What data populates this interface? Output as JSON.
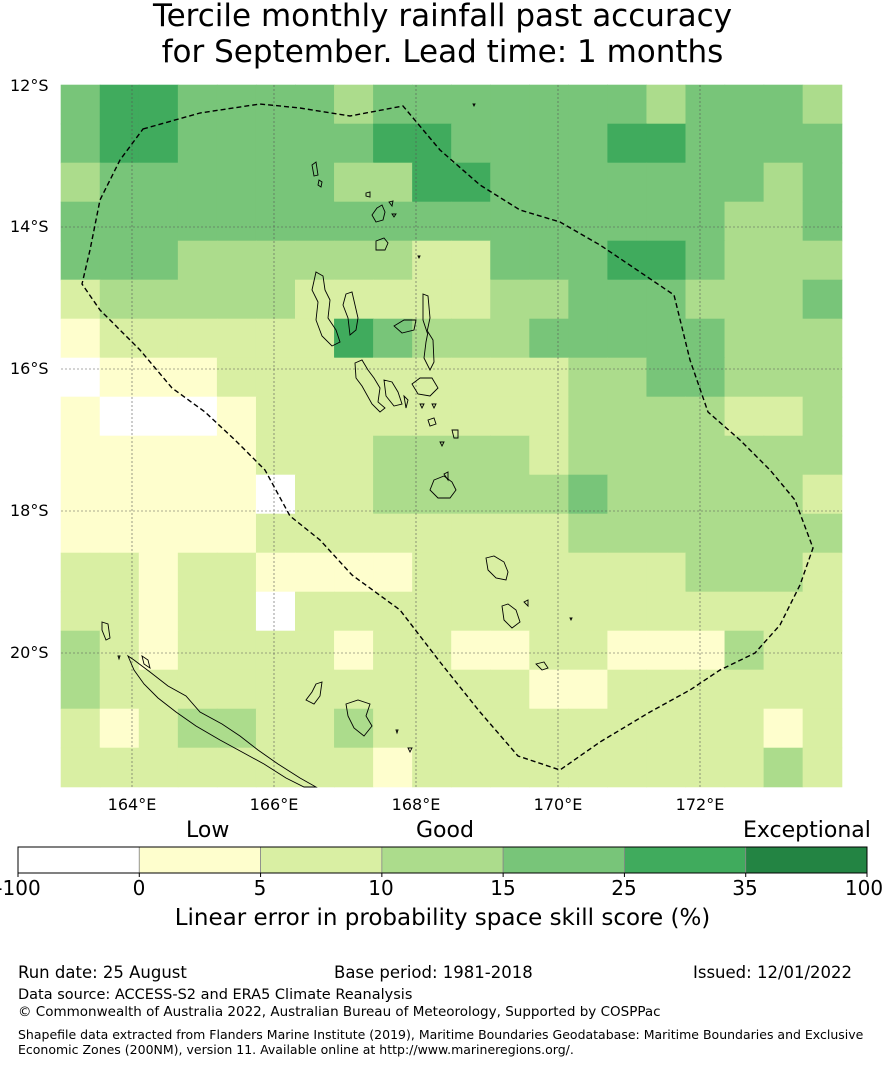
{
  "title": {
    "line1": "Tercile monthly rainfall past accuracy",
    "line2": "for September. Lead time: 1 months"
  },
  "map": {
    "lat_labels": [
      "12°S",
      "14°S",
      "16°S",
      "18°S",
      "20°S"
    ],
    "lon_labels": [
      "164°E",
      "166°E",
      "168°E",
      "170°E",
      "172°E"
    ],
    "grid_colors": [
      "#ffffff",
      "#fefecd",
      "#d9efa3",
      "#acdc8c",
      "#78c579",
      "#40ab5d",
      "#238443"
    ],
    "grid_rows": [
      [
        4,
        5,
        5,
        4,
        4,
        4,
        4,
        3,
        4,
        4,
        4,
        4,
        4,
        4,
        4,
        3,
        4,
        4,
        4,
        3
      ],
      [
        4,
        5,
        5,
        4,
        4,
        4,
        4,
        4,
        5,
        5,
        4,
        4,
        4,
        4,
        5,
        5,
        4,
        4,
        4,
        4
      ],
      [
        3,
        4,
        4,
        4,
        4,
        4,
        4,
        3,
        3,
        5,
        5,
        4,
        4,
        4,
        4,
        4,
        4,
        4,
        3,
        4
      ],
      [
        4,
        4,
        4,
        4,
        4,
        4,
        4,
        4,
        4,
        4,
        4,
        4,
        4,
        4,
        4,
        4,
        4,
        3,
        3,
        4
      ],
      [
        4,
        4,
        4,
        3,
        3,
        3,
        3,
        3,
        3,
        2,
        2,
        4,
        4,
        4,
        5,
        5,
        4,
        3,
        3,
        3
      ],
      [
        2,
        3,
        3,
        3,
        3,
        3,
        2,
        2,
        2,
        2,
        2,
        3,
        3,
        4,
        4,
        4,
        3,
        3,
        3,
        4
      ],
      [
        1,
        2,
        2,
        2,
        2,
        2,
        2,
        5,
        4,
        3,
        3,
        3,
        4,
        4,
        4,
        4,
        4,
        3,
        3,
        3
      ],
      [
        0,
        1,
        1,
        1,
        2,
        2,
        2,
        2,
        2,
        2,
        2,
        2,
        2,
        3,
        3,
        4,
        4,
        3,
        3,
        3
      ],
      [
        1,
        0,
        0,
        0,
        1,
        2,
        2,
        2,
        2,
        2,
        2,
        2,
        2,
        3,
        3,
        3,
        3,
        2,
        2,
        3
      ],
      [
        1,
        1,
        1,
        1,
        1,
        2,
        2,
        2,
        3,
        3,
        3,
        3,
        2,
        3,
        3,
        3,
        3,
        3,
        3,
        3
      ],
      [
        1,
        1,
        1,
        1,
        1,
        0,
        2,
        2,
        3,
        3,
        3,
        3,
        3,
        4,
        3,
        3,
        3,
        3,
        3,
        2
      ],
      [
        1,
        1,
        1,
        1,
        1,
        2,
        2,
        2,
        2,
        2,
        2,
        2,
        2,
        3,
        3,
        3,
        3,
        3,
        3,
        3
      ],
      [
        2,
        2,
        1,
        2,
        2,
        1,
        1,
        1,
        1,
        2,
        2,
        2,
        2,
        2,
        2,
        2,
        3,
        3,
        3,
        2
      ],
      [
        2,
        2,
        1,
        2,
        2,
        0,
        2,
        2,
        2,
        2,
        2,
        2,
        2,
        2,
        2,
        2,
        2,
        2,
        2,
        2
      ],
      [
        3,
        2,
        1,
        2,
        2,
        2,
        2,
        1,
        2,
        2,
        1,
        1,
        2,
        2,
        1,
        1,
        1,
        3,
        2,
        2
      ],
      [
        3,
        2,
        2,
        2,
        2,
        2,
        2,
        2,
        2,
        2,
        2,
        2,
        1,
        1,
        2,
        2,
        2,
        2,
        2,
        2
      ],
      [
        2,
        1,
        2,
        3,
        3,
        2,
        2,
        3,
        2,
        2,
        2,
        2,
        2,
        2,
        2,
        2,
        2,
        2,
        1,
        2
      ],
      [
        2,
        2,
        2,
        2,
        2,
        2,
        2,
        2,
        1,
        2,
        2,
        2,
        2,
        2,
        2,
        2,
        2,
        2,
        3,
        2
      ]
    ]
  },
  "colorbar": {
    "categories": [
      "Low",
      "Good",
      "Exceptional"
    ],
    "ticks": [
      "-100",
      "0",
      "5",
      "10",
      "15",
      "25",
      "35",
      "100"
    ],
    "colors": [
      "#ffffff",
      "#fefecd",
      "#d9efa3",
      "#acdc8c",
      "#78c579",
      "#40ab5d",
      "#238443"
    ],
    "title": "Linear error in probability space skill score (%)"
  },
  "footer": {
    "run_date": "Run date: 25 August",
    "base_period": "Base period: 1981-2018",
    "issued": "Issued: 12/01/2022",
    "data_source": "Data source: ACCESS-S2 and ERA5 Climate Reanalysis",
    "copyright": "© Commonwealth of Australia 2022, Australian Bureau of Meteorology, Supported by COSPPac",
    "shapefile_line1": "Shapefile data extracted from Flanders Marine Institute (2019), Maritime Boundaries Geodatabase: Maritime Boundaries and Exclusive",
    "shapefile_line2": "Economic Zones (200NM), version 11. Available online at http://www.marineregions.org/."
  }
}
